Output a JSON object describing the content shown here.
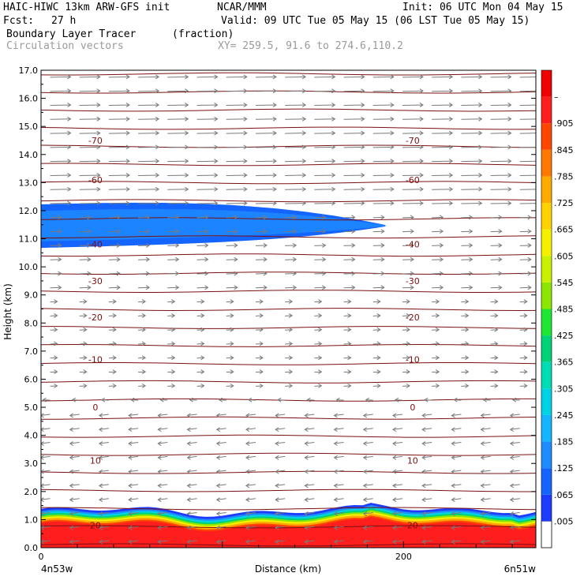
{
  "header": {
    "model": "HAIC-HIWC 13km ARW-GFS init",
    "org": "NCAR/MMM",
    "init": "Init: 06 UTC Mon 04 May 15",
    "fcst_label": "Fcst:",
    "fcst_value": "27 h",
    "valid": "Valid: 09 UTC Tue 05 May 15 (06 LST Tue 05 May 15)",
    "field": "Boundary Layer Tracer",
    "units": "(fraction)",
    "overlay": "Circulation vectors",
    "xy": "XY= 259.5, 91.6 to 274.6,110.2"
  },
  "colors": {
    "contour": "#7a1010",
    "vector": "#7a7a7a",
    "frame": "#000000"
  },
  "chart_data": {
    "type": "heatmap",
    "title": "Boundary Layer Tracer",
    "ylabel": "Height (km)",
    "xlabel": "Distance (km)",
    "xlim": [
      0,
      273
    ],
    "ylim": [
      0,
      17
    ],
    "x_ticks": [
      0,
      200
    ],
    "y_ticks": [
      "0.0",
      "1.0",
      "2.0",
      "3.0",
      "4.0",
      "5.0",
      "6.0",
      "7.0",
      "8.0",
      "9.0",
      "10.0",
      "11.0",
      "12.0",
      "13.0",
      "14.0",
      "15.0",
      "16.0",
      "17.0"
    ],
    "endpoint_left": "4n53w",
    "endpoint_right": "6n51w",
    "colorbar": {
      "labels": [
        ".005",
        ".065",
        ".125",
        ".185",
        ".245",
        ".305",
        ".365",
        ".425",
        ".485",
        ".545",
        ".605",
        ".665",
        ".725",
        ".785",
        ".845",
        ".905",
        "–"
      ],
      "colors": [
        "#ffffff",
        "#1e3cff",
        "#1464ff",
        "#1e8cff",
        "#14b4ff",
        "#00d2e6",
        "#00dcb4",
        "#00d278",
        "#1ee632",
        "#8ce600",
        "#c8f000",
        "#f5f000",
        "#ffd200",
        "#ffaa00",
        "#ff7800",
        "#ff4600",
        "#ff1e1e",
        "#f00000"
      ]
    },
    "contour_levels": [
      {
        "label": "-70",
        "y": 14.5
      },
      {
        "label": "-60",
        "y": 13.1
      },
      {
        "label": "-40",
        "y": 10.8
      },
      {
        "label": "-30",
        "y": 9.5
      },
      {
        "label": "-20",
        "y": 8.2
      },
      {
        "label": "-10",
        "y": 6.7
      },
      {
        "label": "0",
        "y": 5.0
      },
      {
        "label": "10",
        "y": 3.1
      },
      {
        "label": "20",
        "y": 0.8
      }
    ],
    "upper_tracer_layer": {
      "x_start": 0,
      "x_end": 190,
      "base_km": 10.7,
      "top_km": 12.2,
      "value": 0.065
    },
    "boundary_layer": {
      "top_km": 1.3,
      "core_top_km": 0.85,
      "value_core": 0.95
    }
  }
}
